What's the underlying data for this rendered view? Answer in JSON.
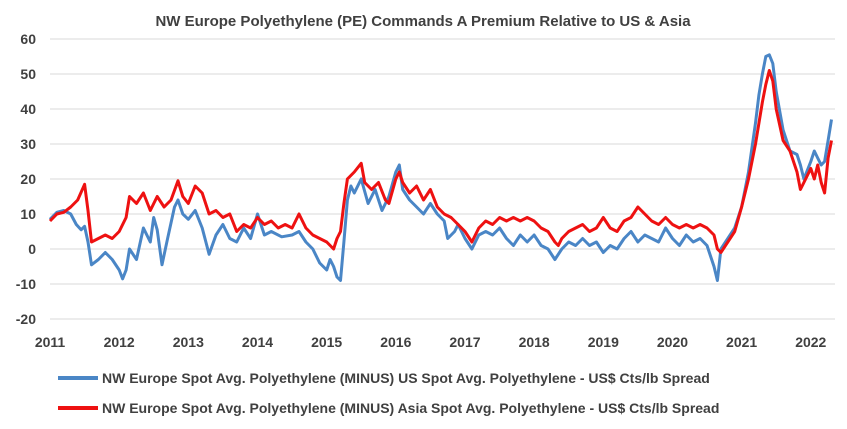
{
  "chart_data": {
    "type": "line",
    "title": "NW Europe Polyethylene (PE) Commands A Premium Relative to US & Asia",
    "xlabel": "",
    "ylabel": "",
    "xlim": [
      2011,
      2022.35
    ],
    "ylim": [
      -20,
      60
    ],
    "y_ticks": [
      -20,
      -10,
      0,
      10,
      20,
      30,
      40,
      50,
      60
    ],
    "x_ticks": [
      2011,
      2012,
      2013,
      2014,
      2015,
      2016,
      2017,
      2018,
      2019,
      2020,
      2021,
      2022
    ],
    "gridlines": "horizontal",
    "legend_position": "bottom",
    "series": [
      {
        "name": "NW Europe Spot Avg. Polyethylene (MINUS) US Spot Avg. Polyethylene - US$ Cts/lb Spread",
        "color": "#4a86c6",
        "points": [
          [
            2011.0,
            8.5
          ],
          [
            2011.1,
            10.5
          ],
          [
            2011.2,
            11.0
          ],
          [
            2011.3,
            10.0
          ],
          [
            2011.38,
            7.0
          ],
          [
            2011.45,
            5.5
          ],
          [
            2011.5,
            6.5
          ],
          [
            2011.55,
            2.0
          ],
          [
            2011.6,
            -4.5
          ],
          [
            2011.7,
            -3.0
          ],
          [
            2011.8,
            -1.0
          ],
          [
            2011.9,
            -3.0
          ],
          [
            2012.0,
            -6.0
          ],
          [
            2012.05,
            -8.5
          ],
          [
            2012.1,
            -6.0
          ],
          [
            2012.15,
            0.0
          ],
          [
            2012.25,
            -3.0
          ],
          [
            2012.35,
            6.0
          ],
          [
            2012.45,
            2.0
          ],
          [
            2012.5,
            9.0
          ],
          [
            2012.55,
            5.5
          ],
          [
            2012.62,
            -4.5
          ],
          [
            2012.7,
            3.0
          ],
          [
            2012.8,
            12.0
          ],
          [
            2012.85,
            14.0
          ],
          [
            2012.92,
            10.0
          ],
          [
            2013.0,
            8.5
          ],
          [
            2013.1,
            11.0
          ],
          [
            2013.2,
            6.0
          ],
          [
            2013.3,
            -1.5
          ],
          [
            2013.4,
            4.0
          ],
          [
            2013.5,
            7.0
          ],
          [
            2013.6,
            3.0
          ],
          [
            2013.7,
            2.0
          ],
          [
            2013.8,
            6.0
          ],
          [
            2013.9,
            3.0
          ],
          [
            2014.0,
            10.0
          ],
          [
            2014.1,
            4.0
          ],
          [
            2014.2,
            5.0
          ],
          [
            2014.35,
            3.5
          ],
          [
            2014.5,
            4.0
          ],
          [
            2014.6,
            5.0
          ],
          [
            2014.7,
            2.0
          ],
          [
            2014.8,
            0.0
          ],
          [
            2014.9,
            -4.0
          ],
          [
            2015.0,
            -6.0
          ],
          [
            2015.05,
            -3.0
          ],
          [
            2015.1,
            -5.0
          ],
          [
            2015.15,
            -8.0
          ],
          [
            2015.2,
            -9.0
          ],
          [
            2015.25,
            2.0
          ],
          [
            2015.3,
            14.0
          ],
          [
            2015.35,
            18.0
          ],
          [
            2015.4,
            16.0
          ],
          [
            2015.5,
            20.0
          ],
          [
            2015.6,
            13.0
          ],
          [
            2015.7,
            17.0
          ],
          [
            2015.8,
            11.0
          ],
          [
            2015.9,
            15.0
          ],
          [
            2016.0,
            22.0
          ],
          [
            2016.05,
            24.0
          ],
          [
            2016.1,
            17.0
          ],
          [
            2016.2,
            14.0
          ],
          [
            2016.3,
            12.0
          ],
          [
            2016.4,
            10.0
          ],
          [
            2016.5,
            13.0
          ],
          [
            2016.6,
            10.0
          ],
          [
            2016.7,
            8.0
          ],
          [
            2016.75,
            3.0
          ],
          [
            2016.85,
            5.0
          ],
          [
            2016.9,
            7.0
          ],
          [
            2017.0,
            3.0
          ],
          [
            2017.1,
            0.0
          ],
          [
            2017.2,
            4.0
          ],
          [
            2017.3,
            5.0
          ],
          [
            2017.4,
            4.0
          ],
          [
            2017.5,
            6.0
          ],
          [
            2017.6,
            3.0
          ],
          [
            2017.7,
            1.0
          ],
          [
            2017.8,
            4.0
          ],
          [
            2017.9,
            2.0
          ],
          [
            2018.0,
            4.0
          ],
          [
            2018.1,
            1.0
          ],
          [
            2018.2,
            0.0
          ],
          [
            2018.3,
            -3.0
          ],
          [
            2018.4,
            0.0
          ],
          [
            2018.5,
            2.0
          ],
          [
            2018.6,
            1.0
          ],
          [
            2018.7,
            3.0
          ],
          [
            2018.8,
            1.0
          ],
          [
            2018.9,
            2.0
          ],
          [
            2019.0,
            -1.0
          ],
          [
            2019.1,
            1.0
          ],
          [
            2019.2,
            0.0
          ],
          [
            2019.3,
            3.0
          ],
          [
            2019.4,
            5.0
          ],
          [
            2019.5,
            2.0
          ],
          [
            2019.6,
            4.0
          ],
          [
            2019.7,
            3.0
          ],
          [
            2019.8,
            2.0
          ],
          [
            2019.9,
            6.0
          ],
          [
            2020.0,
            3.0
          ],
          [
            2020.1,
            1.0
          ],
          [
            2020.2,
            4.0
          ],
          [
            2020.3,
            2.0
          ],
          [
            2020.4,
            3.0
          ],
          [
            2020.5,
            1.0
          ],
          [
            2020.55,
            -2.0
          ],
          [
            2020.6,
            -5.0
          ],
          [
            2020.65,
            -9.0
          ],
          [
            2020.7,
            0.0
          ],
          [
            2020.8,
            3.0
          ],
          [
            2020.9,
            6.0
          ],
          [
            2021.0,
            12.0
          ],
          [
            2021.1,
            22.0
          ],
          [
            2021.2,
            36.0
          ],
          [
            2021.25,
            44.0
          ],
          [
            2021.3,
            50.0
          ],
          [
            2021.35,
            55.0
          ],
          [
            2021.4,
            55.5
          ],
          [
            2021.45,
            53.0
          ],
          [
            2021.5,
            45.0
          ],
          [
            2021.6,
            34.0
          ],
          [
            2021.7,
            28.0
          ],
          [
            2021.8,
            27.0
          ],
          [
            2021.85,
            24.0
          ],
          [
            2021.9,
            20.0
          ],
          [
            2022.0,
            25.0
          ],
          [
            2022.05,
            28.0
          ],
          [
            2022.1,
            26.0
          ],
          [
            2022.15,
            24.0
          ],
          [
            2022.2,
            25.0
          ],
          [
            2022.25,
            31.0
          ],
          [
            2022.3,
            37.0
          ]
        ]
      },
      {
        "name": "NW Europe Spot Avg. Polyethylene (MINUS) Asia Spot Avg. Polyethylene - US$ Cts/lb Spread",
        "color": "#ee1111",
        "points": [
          [
            2011.0,
            8.0
          ],
          [
            2011.1,
            10.0
          ],
          [
            2011.2,
            10.5
          ],
          [
            2011.3,
            12.0
          ],
          [
            2011.4,
            14.0
          ],
          [
            2011.5,
            18.5
          ],
          [
            2011.55,
            11.0
          ],
          [
            2011.6,
            2.0
          ],
          [
            2011.7,
            3.0
          ],
          [
            2011.8,
            4.0
          ],
          [
            2011.9,
            3.0
          ],
          [
            2012.0,
            5.0
          ],
          [
            2012.1,
            9.0
          ],
          [
            2012.15,
            15.0
          ],
          [
            2012.25,
            13.0
          ],
          [
            2012.35,
            16.0
          ],
          [
            2012.45,
            11.0
          ],
          [
            2012.55,
            15.0
          ],
          [
            2012.65,
            12.0
          ],
          [
            2012.75,
            14.0
          ],
          [
            2012.85,
            19.5
          ],
          [
            2012.92,
            15.0
          ],
          [
            2013.0,
            13.0
          ],
          [
            2013.1,
            18.0
          ],
          [
            2013.2,
            16.0
          ],
          [
            2013.3,
            10.0
          ],
          [
            2013.4,
            11.0
          ],
          [
            2013.5,
            9.0
          ],
          [
            2013.6,
            10.0
          ],
          [
            2013.7,
            5.0
          ],
          [
            2013.8,
            7.0
          ],
          [
            2013.9,
            6.0
          ],
          [
            2014.0,
            9.0
          ],
          [
            2014.1,
            7.0
          ],
          [
            2014.2,
            8.0
          ],
          [
            2014.3,
            6.0
          ],
          [
            2014.4,
            7.0
          ],
          [
            2014.5,
            6.0
          ],
          [
            2014.6,
            10.0
          ],
          [
            2014.7,
            6.0
          ],
          [
            2014.8,
            4.0
          ],
          [
            2014.9,
            3.0
          ],
          [
            2015.0,
            2.0
          ],
          [
            2015.1,
            0.0
          ],
          [
            2015.15,
            3.0
          ],
          [
            2015.2,
            5.0
          ],
          [
            2015.25,
            13.0
          ],
          [
            2015.3,
            20.0
          ],
          [
            2015.4,
            22.0
          ],
          [
            2015.5,
            24.5
          ],
          [
            2015.55,
            19.0
          ],
          [
            2015.65,
            17.0
          ],
          [
            2015.75,
            19.0
          ],
          [
            2015.85,
            14.0
          ],
          [
            2015.9,
            13.0
          ],
          [
            2016.0,
            20.0
          ],
          [
            2016.05,
            22.0
          ],
          [
            2016.1,
            19.0
          ],
          [
            2016.2,
            16.0
          ],
          [
            2016.3,
            18.0
          ],
          [
            2016.4,
            14.0
          ],
          [
            2016.5,
            17.0
          ],
          [
            2016.6,
            12.0
          ],
          [
            2016.7,
            10.0
          ],
          [
            2016.8,
            9.0
          ],
          [
            2016.9,
            7.0
          ],
          [
            2017.0,
            5.0
          ],
          [
            2017.1,
            2.0
          ],
          [
            2017.2,
            6.0
          ],
          [
            2017.3,
            8.0
          ],
          [
            2017.4,
            7.0
          ],
          [
            2017.5,
            9.0
          ],
          [
            2017.6,
            8.0
          ],
          [
            2017.7,
            9.0
          ],
          [
            2017.8,
            8.0
          ],
          [
            2017.9,
            9.0
          ],
          [
            2018.0,
            8.0
          ],
          [
            2018.1,
            6.0
          ],
          [
            2018.2,
            5.0
          ],
          [
            2018.3,
            2.0
          ],
          [
            2018.35,
            1.0
          ],
          [
            2018.4,
            3.0
          ],
          [
            2018.5,
            5.0
          ],
          [
            2018.6,
            6.0
          ],
          [
            2018.7,
            7.0
          ],
          [
            2018.8,
            5.0
          ],
          [
            2018.9,
            6.0
          ],
          [
            2019.0,
            9.0
          ],
          [
            2019.1,
            6.0
          ],
          [
            2019.2,
            5.0
          ],
          [
            2019.3,
            8.0
          ],
          [
            2019.4,
            9.0
          ],
          [
            2019.5,
            12.0
          ],
          [
            2019.6,
            10.0
          ],
          [
            2019.7,
            8.0
          ],
          [
            2019.8,
            7.0
          ],
          [
            2019.9,
            9.0
          ],
          [
            2020.0,
            7.0
          ],
          [
            2020.1,
            6.0
          ],
          [
            2020.2,
            7.0
          ],
          [
            2020.3,
            6.0
          ],
          [
            2020.4,
            7.0
          ],
          [
            2020.5,
            6.0
          ],
          [
            2020.6,
            4.0
          ],
          [
            2020.65,
            0.0
          ],
          [
            2020.7,
            -1.0
          ],
          [
            2020.8,
            2.0
          ],
          [
            2020.9,
            5.0
          ],
          [
            2021.0,
            12.0
          ],
          [
            2021.1,
            20.0
          ],
          [
            2021.2,
            30.0
          ],
          [
            2021.3,
            42.0
          ],
          [
            2021.35,
            47.0
          ],
          [
            2021.4,
            51.0
          ],
          [
            2021.45,
            48.0
          ],
          [
            2021.5,
            40.0
          ],
          [
            2021.6,
            31.0
          ],
          [
            2021.7,
            28.0
          ],
          [
            2021.8,
            22.0
          ],
          [
            2021.85,
            17.0
          ],
          [
            2021.9,
            19.0
          ],
          [
            2022.0,
            23.0
          ],
          [
            2022.05,
            20.0
          ],
          [
            2022.1,
            24.0
          ],
          [
            2022.15,
            19.0
          ],
          [
            2022.2,
            16.0
          ],
          [
            2022.25,
            26.0
          ],
          [
            2022.3,
            31.0
          ]
        ]
      }
    ]
  }
}
